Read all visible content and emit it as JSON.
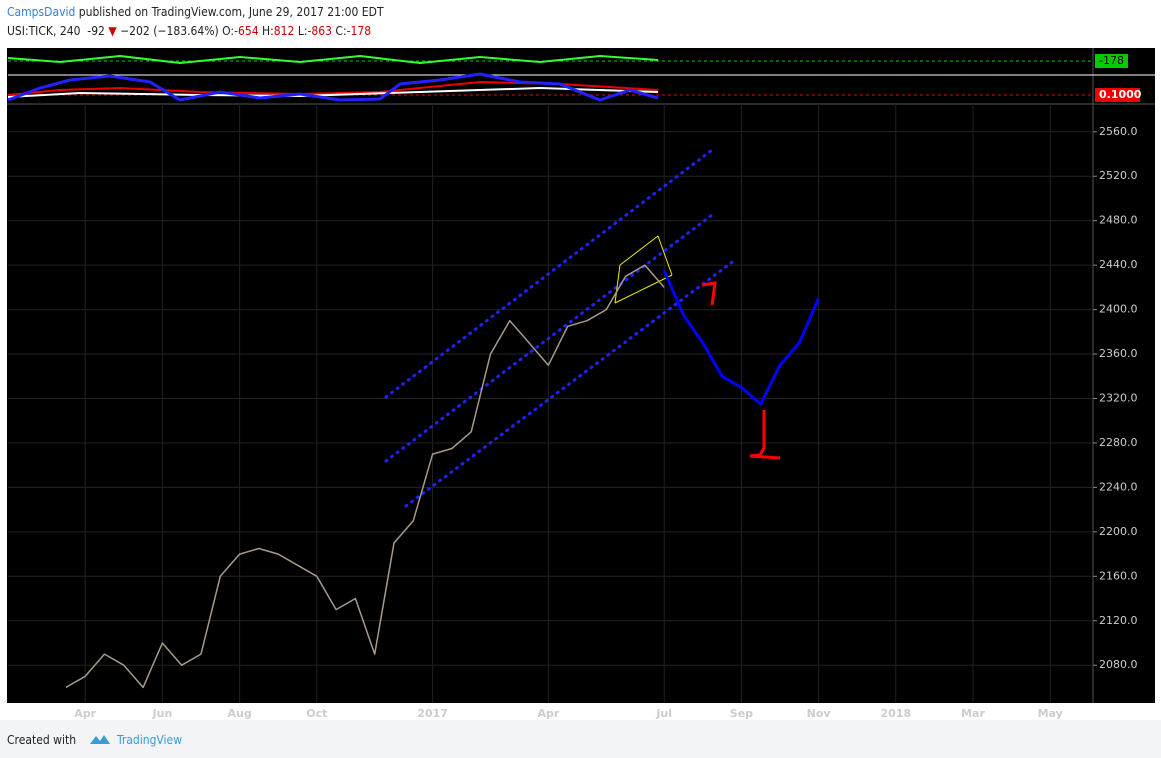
{
  "header": {
    "author": "CampsDavid",
    "published": " published on TradingView.com, June 29, 2017 21:00 EDT",
    "symbol": "USI:TICK, 240",
    "last": "-92",
    "arrow": "▼",
    "change": "−202 (−183.64%)",
    "o_label": "O:",
    "o": "-654",
    "h_label": "H:",
    "h": "812",
    "l_label": "L:",
    "l": "-863",
    "c_label": "C:",
    "c": "-178"
  },
  "indicator": {
    "green_label": "-178",
    "red_label": "0.1000"
  },
  "footer": {
    "created": "Created with",
    "brand": "TradingView"
  },
  "chart_data": {
    "type": "line",
    "categories": [
      null,
      null,
      null,
      null,
      "Apr",
      null,
      null,
      null,
      "Jun",
      null,
      null,
      null,
      "Aug",
      null,
      null,
      null,
      "Oct",
      null,
      null,
      null,
      null,
      null,
      "2017",
      null,
      null,
      null,
      null,
      null,
      "Apr",
      null,
      null,
      null,
      null,
      null,
      "Jul",
      null,
      null,
      null,
      "Sep",
      null,
      null,
      null,
      "Nov",
      null,
      null,
      null,
      "2018",
      null,
      null,
      null,
      "Mar",
      null,
      null,
      null,
      "May",
      null,
      null
    ],
    "series": [
      {
        "color": "#a89a8a",
        "values": [
          null,
          null,
          null,
          2060,
          2070,
          2090,
          2080,
          2060,
          2100,
          2080,
          2090,
          2160,
          2180,
          2185,
          2180,
          2170,
          2160,
          2130,
          2140,
          2090,
          2190,
          2210,
          2270,
          2275,
          2290,
          2360,
          2390,
          2370,
          2350,
          2385,
          2390,
          2400,
          2430,
          2440,
          2420,
          null,
          null,
          null,
          null,
          null,
          null,
          null,
          null,
          null,
          null,
          null,
          null,
          null,
          null,
          null,
          null,
          null,
          null,
          null,
          null,
          null,
          null
        ]
      },
      {
        "color": "#0000ff",
        "values": [
          null,
          null,
          null,
          null,
          null,
          null,
          null,
          null,
          null,
          null,
          null,
          null,
          null,
          null,
          null,
          null,
          null,
          null,
          null,
          null,
          null,
          null,
          null,
          null,
          null,
          null,
          null,
          null,
          null,
          null,
          null,
          null,
          null,
          null,
          2435,
          2395,
          2370,
          2340,
          2330,
          2315,
          2350,
          2370,
          2410,
          null,
          null,
          null,
          null,
          null,
          null,
          null,
          null,
          null,
          null,
          null,
          null,
          null,
          null
        ]
      }
    ],
    "ylim": [
      2046,
      2585
    ],
    "yticks": [
      {
        "value": 2080,
        "label": "2080.0"
      },
      {
        "value": 2120,
        "label": "2120.0"
      },
      {
        "value": 2160,
        "label": "2160.0"
      },
      {
        "value": 2200,
        "label": "2200.0"
      },
      {
        "value": 2240,
        "label": "2240.0"
      },
      {
        "value": 2280,
        "label": "2280.0"
      },
      {
        "value": 2320,
        "label": "2320.0"
      },
      {
        "value": 2360,
        "label": "2360.0"
      },
      {
        "value": 2400,
        "label": "2400.0"
      },
      {
        "value": 2440,
        "label": "2440.0"
      },
      {
        "value": 2480,
        "label": "2480.0"
      },
      {
        "value": 2520,
        "label": "2520.0"
      },
      {
        "value": 2560,
        "label": "2560.0"
      }
    ],
    "grid": true
  }
}
